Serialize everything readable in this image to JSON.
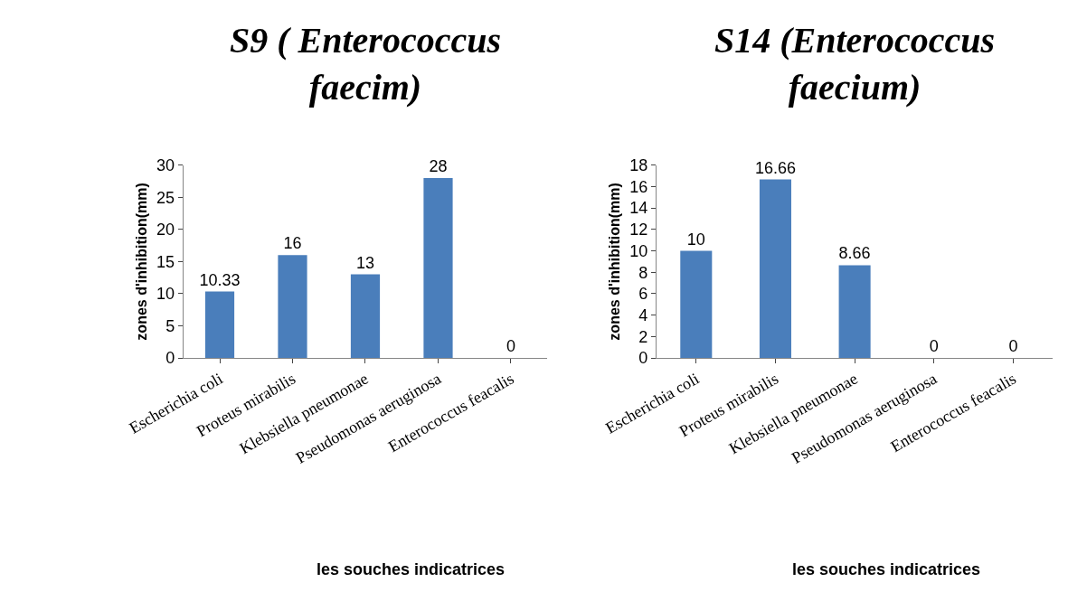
{
  "chart_data": [
    {
      "type": "bar",
      "title": "S9 ( Enterococcus faecim)",
      "xlabel": "les souches indicatrices",
      "ylabel": "zones d'inhibition(mm)",
      "categories": [
        "Escherichia coli",
        "Proteus mirabilis",
        "Klebsiella pneumonae",
        "Pseudomonas aeruginosa",
        "Enterococcus feacalis"
      ],
      "values": [
        10.33,
        16,
        13,
        28,
        0
      ],
      "color": "#4a7ebb",
      "ylim": [
        0,
        30
      ],
      "yticks": [
        0,
        5,
        10,
        15,
        20,
        25,
        30
      ],
      "data_labels": true
    },
    {
      "type": "bar",
      "title": "S14 (Enterococcus faecium)",
      "xlabel": "les souches indicatrices",
      "ylabel": "zones d'inhibition(mm)",
      "categories": [
        "Escherichia coli",
        "Proteus mirabilis",
        "Klebsiella pneumonae",
        "Pseudomonas aeruginosa",
        "Enterococcus feacalis"
      ],
      "values": [
        10,
        16.66,
        8.66,
        0,
        0
      ],
      "color": "#4a7ebb",
      "ylim": [
        0,
        18
      ],
      "yticks": [
        0,
        2,
        4,
        6,
        8,
        10,
        12,
        14,
        16,
        18
      ],
      "data_labels": true
    }
  ]
}
